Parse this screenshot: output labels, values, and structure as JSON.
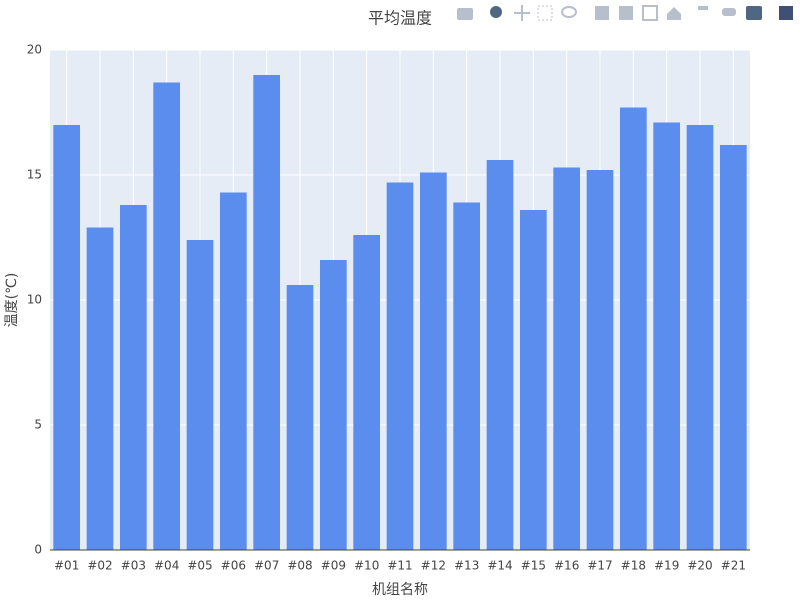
{
  "chart_data": {
    "type": "bar",
    "title": "平均温度",
    "x_label": "机组名称",
    "y_label": "温度(℃)",
    "categories": [
      "#01",
      "#02",
      "#03",
      "#04",
      "#05",
      "#06",
      "#07",
      "#08",
      "#09",
      "#10",
      "#11",
      "#12",
      "#13",
      "#14",
      "#15",
      "#16",
      "#17",
      "#18",
      "#19",
      "#20",
      "#21"
    ],
    "values": [
      17.0,
      12.9,
      13.8,
      18.7,
      12.4,
      14.3,
      19.0,
      10.6,
      11.6,
      12.6,
      14.7,
      15.1,
      13.9,
      15.6,
      13.6,
      15.3,
      15.2,
      17.7,
      17.1,
      17.0,
      16.2
    ],
    "color": "#5b8def",
    "ylim": [
      0,
      20
    ],
    "yticks": [
      0,
      5,
      10,
      15,
      20
    ],
    "grid": true
  }
}
